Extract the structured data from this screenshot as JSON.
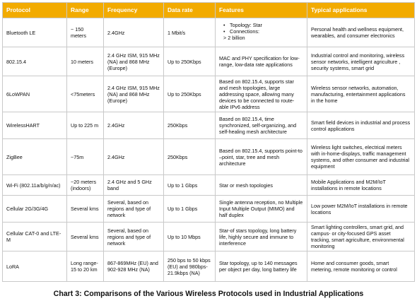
{
  "columns": [
    "Protocol",
    "Range",
    "Frequency",
    "Data rate",
    "Features",
    "Typical applications"
  ],
  "rows": [
    {
      "protocol": "Bluetooth LE",
      "range": "~ 150 meters",
      "frequency": "2.4GHz",
      "data_rate": "1 Mbit/s",
      "features": {
        "bullets": [
          "Topology: Star",
          "Connections:"
        ],
        "sub": "> 2 billion"
      },
      "applications": "Personal health and wellness equipment, wearables, and consumer electronics"
    },
    {
      "protocol": "802.15.4",
      "range": "10 meters",
      "frequency": "2.4 GHz ISM, 915 MHz (NA) and 868 MHz (Europe)",
      "data_rate": "Up to 250Kbps",
      "features": "MAC and PHY specification for low-range, low-data rate applications",
      "applications": "Industrial control and monitoring, wireless sensor networks, intelligent agriculture , security systems, smart grid"
    },
    {
      "protocol": "6LoWPAN",
      "range": "<75meters",
      "frequency": "2.4 GHz ISM, 915 MHz (NA) and 868 MHz (Europe)",
      "data_rate": "Up to 250Kbps",
      "features": "Based on 802.15.4, supports star and mesh topologies, large addressing space, allowing many devices to be connected to route-able IPv6 address",
      "applications": "Wireless sensor networks, automation, manufacturing, entertainment applications in the home"
    },
    {
      "protocol": "WirelessHART",
      "range": "Up to 225 m",
      "frequency": "2.4GHz",
      "data_rate": "250Kbps",
      "features": "Based on 802.15.4, time synchronized, self-organizing, and self-healing mesh architecture",
      "applications": "Smart field devices in industrial and process control applications"
    },
    {
      "protocol": "ZigBee",
      "range": "~75m",
      "frequency": "2.4GHz",
      "data_rate": "250Kbps",
      "features": "Based on 802.15.4, supports point-to –point, star, tree and mesh architecture",
      "applications": "Wireless light switches, electrical meters with in-home-displays, traffic management systems, and other consumer and industrial equipment"
    },
    {
      "protocol": "Wi-Fi (802.11a/b/g/n/ac)",
      "range": "~20 meters (indoors)",
      "frequency": "2.4 GHz and 5 GHz band",
      "data_rate": "Up to 1 Gbps",
      "features": "Star or mesh topologies",
      "applications": "Mobile Applications and M2M/IoT installations in remote locations"
    },
    {
      "protocol": "Cellular 2G/3G/4G",
      "range": "Several kms",
      "frequency": "Several, based on regions and type of network",
      "data_rate": "Up to 1 Gbps",
      "features": "Single antenna reception, no Multiple Input Multiple Output (MIMO) and half duplex",
      "applications": "Low power M2M/IoT installations in remote locations"
    },
    {
      "protocol": "Cellular CAT-0 and LTE-M",
      "range": "Several kms",
      "frequency": "Several, based on regions and type of network",
      "data_rate": "Up to 10 Mbps",
      "features": "Star-of stars topology, long battery life, highly secure and immune to interference",
      "applications": "Smart lighting controllers, smart grid, and campus- or city-focused GPS asset tracking, smart agriculture, environmental monitoring"
    },
    {
      "protocol": "LoRA",
      "range": "Long range-15 to 20 km",
      "frequency": "867-869MHz (EU) and 902-928 MHz (NA)",
      "data_rate": "250 bps to 50 kbps (EU) and 980bps-21.9kbps (NA)",
      "features": "Star topology, up to 140 messages per object per day, long battery life",
      "applications": "Home and consumer goods, smart metering, remote monitoring or control"
    }
  ],
  "caption": "Chart 3: Comparisons of the Various Wireless Protocols used in Industrial Applications",
  "colors": {
    "header_bg": "#f2ab00",
    "header_text": "#ffffff",
    "border": "#c9c9c9"
  }
}
